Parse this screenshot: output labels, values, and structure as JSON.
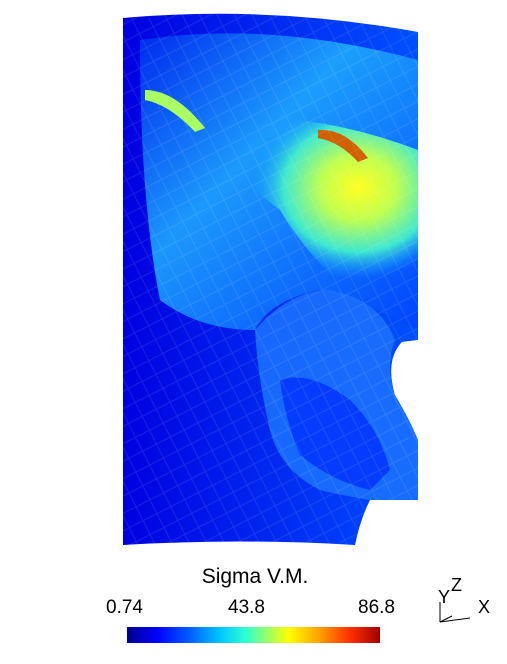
{
  "legend": {
    "title": "Sigma V.M.",
    "min": "0.74",
    "mid": "43.8",
    "max": "86.8"
  },
  "axes": {
    "z": "Z",
    "y": "Y",
    "x": "X"
  },
  "colormap": [
    "#00008f",
    "#0000ff",
    "#0060ff",
    "#00c8ff",
    "#30ffd0",
    "#a0ff60",
    "#ffff00",
    "#ffa000",
    "#ff3000",
    "#a00000"
  ]
}
